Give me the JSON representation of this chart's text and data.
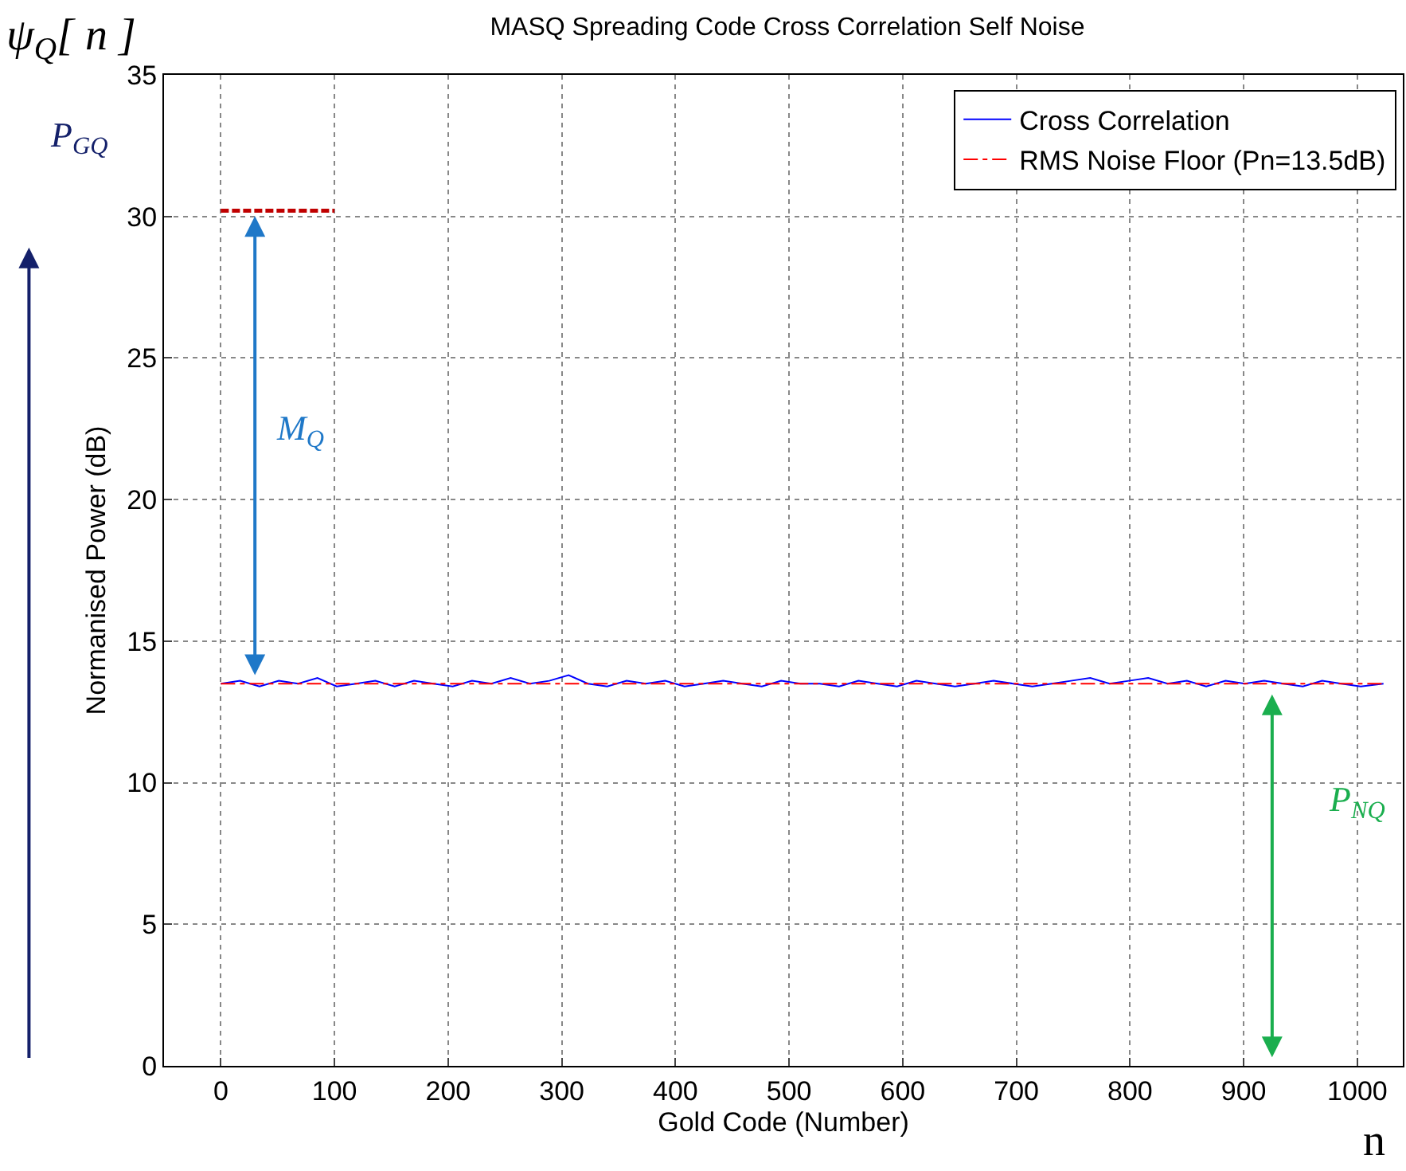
{
  "chart_data": {
    "type": "line",
    "title": "MASQ Spreading Code Cross Correlation Self Noise",
    "xlabel": "Gold Code (Number)",
    "ylabel": "Normanised Power (dB)",
    "xlim": [
      -50,
      1040
    ],
    "xticks": [
      0,
      100,
      200,
      300,
      400,
      500,
      600,
      700,
      800,
      900,
      1000
    ],
    "ylim": [
      0,
      35
    ],
    "yticks": [
      0,
      5,
      10,
      15,
      20,
      25,
      30,
      35
    ],
    "grid": true,
    "legend": "top right",
    "marker": "none",
    "series": [
      {
        "name": "Cross Correlation",
        "color": "#0000ff",
        "line_style": "solid",
        "x": [
          0,
          17,
          34,
          51,
          68,
          85,
          102,
          119,
          136,
          153,
          170,
          187,
          204,
          221,
          238,
          255,
          272,
          289,
          306,
          323,
          340,
          357,
          374,
          391,
          408,
          425,
          442,
          459,
          476,
          493,
          510,
          527,
          544,
          561,
          578,
          595,
          612,
          629,
          646,
          663,
          680,
          697,
          714,
          731,
          748,
          765,
          782,
          799,
          816,
          833,
          850,
          867,
          884,
          901,
          918,
          935,
          952,
          969,
          986,
          1003,
          1023
        ],
        "values": [
          13.5,
          13.6,
          13.4,
          13.6,
          13.5,
          13.7,
          13.4,
          13.5,
          13.6,
          13.4,
          13.6,
          13.5,
          13.4,
          13.6,
          13.5,
          13.7,
          13.5,
          13.6,
          13.8,
          13.5,
          13.4,
          13.6,
          13.5,
          13.6,
          13.4,
          13.5,
          13.6,
          13.5,
          13.4,
          13.6,
          13.5,
          13.5,
          13.4,
          13.6,
          13.5,
          13.4,
          13.6,
          13.5,
          13.4,
          13.5,
          13.6,
          13.5,
          13.4,
          13.5,
          13.6,
          13.7,
          13.5,
          13.6,
          13.7,
          13.5,
          13.6,
          13.4,
          13.6,
          13.5,
          13.6,
          13.5,
          13.4,
          13.6,
          13.5,
          13.4,
          13.5
        ]
      },
      {
        "name": "RMS Noise Floor (Pn=13.5dB)",
        "color": "#ff0000",
        "line_style": "dashdot",
        "x": [
          0,
          1023
        ],
        "values": [
          13.5,
          13.5
        ]
      },
      {
        "color": "#c00000",
        "line_style": "dashed",
        "x": [
          0,
          100
        ],
        "values": [
          30.2,
          30.2
        ]
      }
    ],
    "annotations": [
      "M$_{Q}$",
      "P$_{NQ}$",
      "P$_{GQ}$",
      "ψ$_{Q}$[ n ]",
      "n"
    ]
  }
}
